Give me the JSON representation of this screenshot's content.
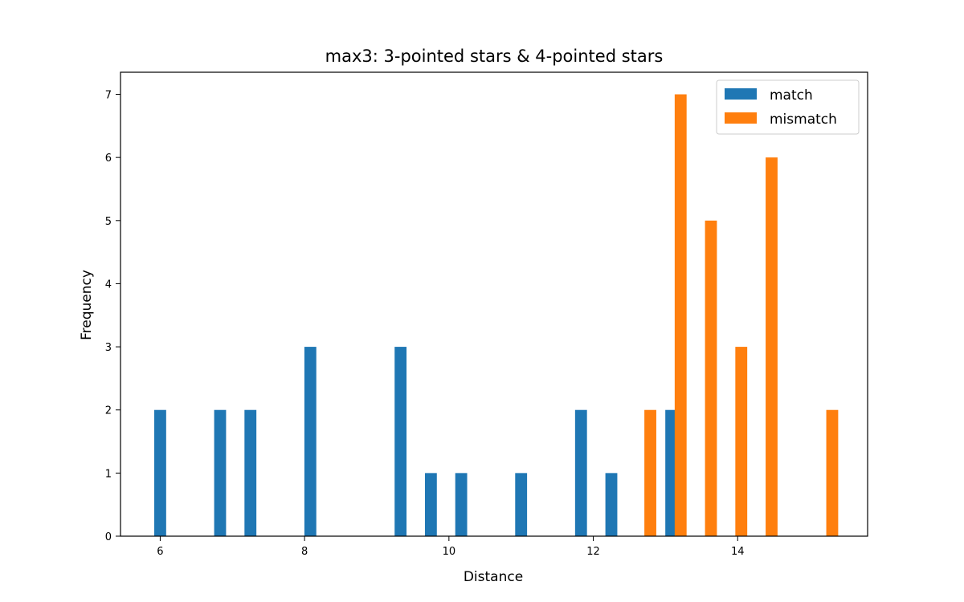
{
  "chart_data": {
    "type": "bar",
    "title": "max3:  3-pointed stars  &  4-pointed stars",
    "xlabel": "Distance",
    "ylabel": "Frequency",
    "xlim": [
      5.45,
      15.8
    ],
    "ylim": [
      0,
      7.35
    ],
    "xticks": [
      "6",
      "8",
      "10",
      "12",
      "14"
    ],
    "xtick_values": [
      6,
      8,
      10,
      12,
      14
    ],
    "yticks": [
      "0",
      "1",
      "2",
      "3",
      "4",
      "5",
      "6",
      "7"
    ],
    "yticks_values": [
      0,
      1,
      2,
      3,
      4,
      5,
      6,
      7
    ],
    "bar_width": 0.165,
    "legend": {
      "placement": "top-right",
      "entries": [
        "match",
        "mismatch"
      ]
    },
    "series": [
      {
        "name": "match",
        "color": "#1f77b4",
        "x": [
          6.0,
          6.83,
          7.25,
          8.08,
          9.33,
          9.75,
          10.17,
          11.0,
          11.83,
          12.25,
          13.08
        ],
        "values": [
          2,
          2,
          2,
          3,
          3,
          1,
          1,
          1,
          2,
          1,
          2
        ]
      },
      {
        "name": "mismatch",
        "color": "#ff7f0e",
        "x": [
          12.79,
          13.21,
          13.63,
          14.05,
          14.47,
          15.31
        ],
        "values": [
          2,
          7,
          5,
          3,
          6,
          2
        ]
      }
    ]
  }
}
